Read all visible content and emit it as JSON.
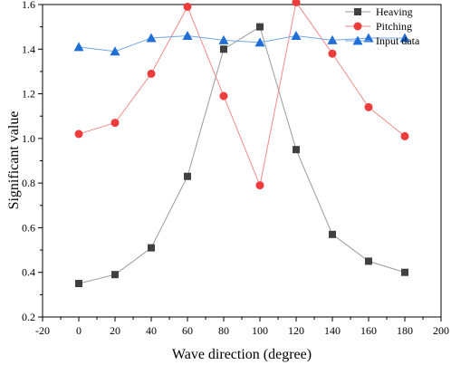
{
  "chart_data": {
    "type": "line",
    "title": "",
    "xlabel": "Wave direction (degree)",
    "ylabel": "Significant value",
    "xlim": [
      -20,
      200
    ],
    "ylim": [
      0.2,
      1.6
    ],
    "xticks": [
      -20,
      0,
      20,
      40,
      60,
      80,
      100,
      120,
      140,
      160,
      180,
      200
    ],
    "yticks": [
      0.2,
      0.4,
      0.6,
      0.8,
      1.0,
      1.2,
      1.4,
      1.6
    ],
    "xtick_labels": [
      "-20",
      "0",
      "20",
      "40",
      "60",
      "80",
      "100",
      "120",
      "140",
      "160",
      "180",
      "200"
    ],
    "ytick_labels": [
      "0.2",
      "0.4",
      "0.6",
      "0.8",
      "1.0",
      "1.2",
      "1.4",
      "1.6"
    ],
    "grid": false,
    "legend_position": "top-right",
    "x": [
      0,
      20,
      40,
      60,
      80,
      100,
      120,
      140,
      160,
      180
    ],
    "series": [
      {
        "name": "Heaving",
        "marker": "square",
        "color": "#404040",
        "line_color": "#9a9a9a",
        "values": [
          0.35,
          0.39,
          0.51,
          0.83,
          1.4,
          1.5,
          0.95,
          0.57,
          0.45,
          0.4
        ]
      },
      {
        "name": "Pitching",
        "marker": "circle",
        "color": "#ee3b3b",
        "line_color": "#f28a8a",
        "values": [
          1.02,
          1.07,
          1.29,
          1.59,
          1.19,
          0.79,
          1.61,
          1.38,
          1.14,
          1.01
        ]
      },
      {
        "name": "Input data",
        "marker": "triangle",
        "color": "#1f6fd6",
        "line_color": "#6fa8e8",
        "values": [
          1.41,
          1.39,
          1.45,
          1.46,
          1.44,
          1.43,
          1.46,
          1.44,
          1.45,
          1.45
        ]
      }
    ]
  }
}
